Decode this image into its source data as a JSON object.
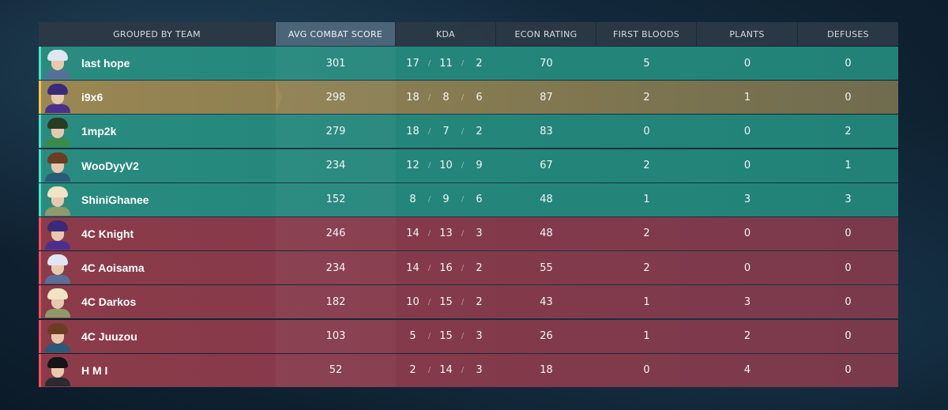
{
  "headers": {
    "team": "GROUPED BY TEAM",
    "acs": "AVG COMBAT SCORE",
    "kda": "KDA",
    "econ": "ECON RATING",
    "first_bloods": "FIRST BLOODS",
    "plants": "PLANTS",
    "defuses": "DEFUSES"
  },
  "colors": {
    "teal_team": "#24877b",
    "highlight_player": "#8a7d52",
    "red_team": "#843a4b",
    "sorted_header": "#4b6478"
  },
  "players": [
    {
      "name": "last hope",
      "acs": "301",
      "k": "17",
      "d": "11",
      "a": "2",
      "econ": "70",
      "fb": "5",
      "plants": "0",
      "defuses": "0",
      "team": "teal",
      "agent_icon": "agent-portrait-icon",
      "hair": "#dfe6f2",
      "outfit": "#5a6e9a"
    },
    {
      "name": "i9x6",
      "acs": "298",
      "k": "18",
      "d": "8",
      "a": "6",
      "econ": "87",
      "fb": "2",
      "plants": "1",
      "defuses": "0",
      "team": "gold",
      "agent_icon": "agent-portrait-icon",
      "hair": "#3a2a7a",
      "outfit": "#4b2f8f"
    },
    {
      "name": "1mp2k",
      "acs": "279",
      "k": "18",
      "d": "7",
      "a": "2",
      "econ": "83",
      "fb": "0",
      "plants": "0",
      "defuses": "2",
      "team": "teal",
      "agent_icon": "agent-portrait-icon",
      "hair": "#2a3b24",
      "outfit": "#3b8a4a"
    },
    {
      "name": "WooDyyV2",
      "acs": "234",
      "k": "12",
      "d": "10",
      "a": "9",
      "econ": "67",
      "fb": "2",
      "plants": "0",
      "defuses": "1",
      "team": "teal",
      "agent_icon": "agent-portrait-icon",
      "hair": "#6b3e22",
      "outfit": "#2a5a78"
    },
    {
      "name": "ShiniGhanee",
      "acs": "152",
      "k": "8",
      "d": "9",
      "a": "6",
      "econ": "48",
      "fb": "1",
      "plants": "3",
      "defuses": "3",
      "team": "teal",
      "agent_icon": "agent-portrait-icon",
      "hair": "#efe4c4",
      "outfit": "#8f9a6a"
    },
    {
      "name": "4C Knight",
      "acs": "246",
      "k": "14",
      "d": "13",
      "a": "3",
      "econ": "48",
      "fb": "2",
      "plants": "0",
      "defuses": "0",
      "team": "red",
      "agent_icon": "agent-portrait-icon",
      "hair": "#3a2a7a",
      "outfit": "#4b2f8f"
    },
    {
      "name": "4C Aoisama",
      "acs": "234",
      "k": "14",
      "d": "16",
      "a": "2",
      "econ": "55",
      "fb": "2",
      "plants": "0",
      "defuses": "0",
      "team": "red",
      "agent_icon": "agent-portrait-icon",
      "hair": "#dfe6f2",
      "outfit": "#5a6e9a"
    },
    {
      "name": "4C Darkos",
      "acs": "182",
      "k": "10",
      "d": "15",
      "a": "2",
      "econ": "43",
      "fb": "1",
      "plants": "3",
      "defuses": "0",
      "team": "red",
      "agent_icon": "agent-portrait-icon",
      "hair": "#efe4c4",
      "outfit": "#8f9a6a"
    },
    {
      "name": "4C Juuzou",
      "acs": "103",
      "k": "5",
      "d": "15",
      "a": "3",
      "econ": "26",
      "fb": "1",
      "plants": "2",
      "defuses": "0",
      "team": "red",
      "agent_icon": "agent-portrait-icon",
      "hair": "#6b3e22",
      "outfit": "#2a5a78"
    },
    {
      "name": "H M I",
      "acs": "52",
      "k": "2",
      "d": "14",
      "a": "3",
      "econ": "18",
      "fb": "0",
      "plants": "4",
      "defuses": "0",
      "team": "red",
      "agent_icon": "agent-portrait-icon",
      "hair": "#151518",
      "outfit": "#2a2a30"
    }
  ],
  "kda_separator": "/"
}
